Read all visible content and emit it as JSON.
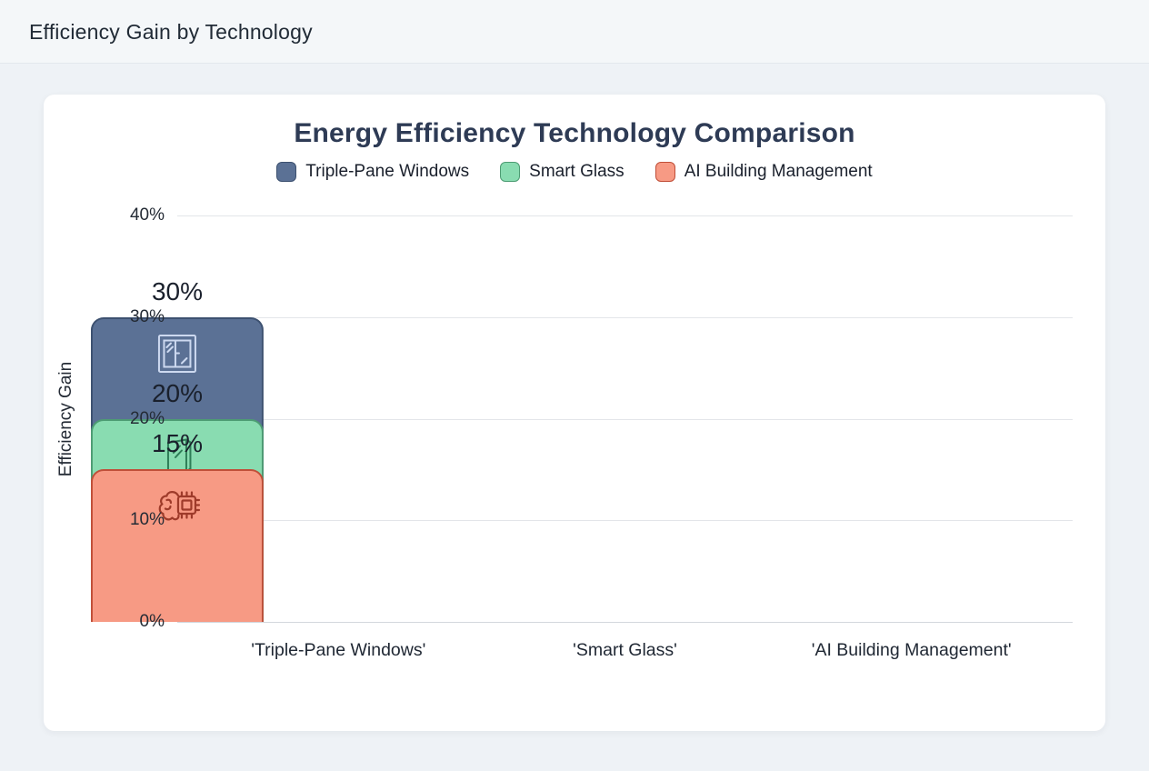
{
  "page": {
    "header_title": "Efficiency Gain by Technology"
  },
  "chart_data": {
    "type": "bar",
    "title": "Energy Efficiency Technology Comparison",
    "ylabel": "Efficiency Gain",
    "ylim": [
      0,
      40
    ],
    "yticks": [
      "40%",
      "30%",
      "20%",
      "10%",
      "0%"
    ],
    "grid": true,
    "legend_position": "top",
    "categories": [
      "'Triple-Pane Windows'",
      "'Smart Glass'",
      "'AI Building Management'"
    ],
    "series": [
      {
        "name": "Triple-Pane Windows",
        "value": 30,
        "label": "30%",
        "color": "#5b7195",
        "border_color": "#3d5170",
        "icon": "window-icon",
        "icon_color": "#cdd9f0"
      },
      {
        "name": "Smart Glass",
        "value": 20,
        "label": "20%",
        "color": "#89dcb1",
        "border_color": "#4d9c73",
        "icon": "glass-pane-icon",
        "icon_color": "#2e7d57"
      },
      {
        "name": "AI Building Management",
        "value": 15,
        "label": "15%",
        "color": "#f79a84",
        "border_color": "#c04f39",
        "icon": "ai-chip-icon",
        "icon_color": "#9e3b2a"
      }
    ]
  }
}
